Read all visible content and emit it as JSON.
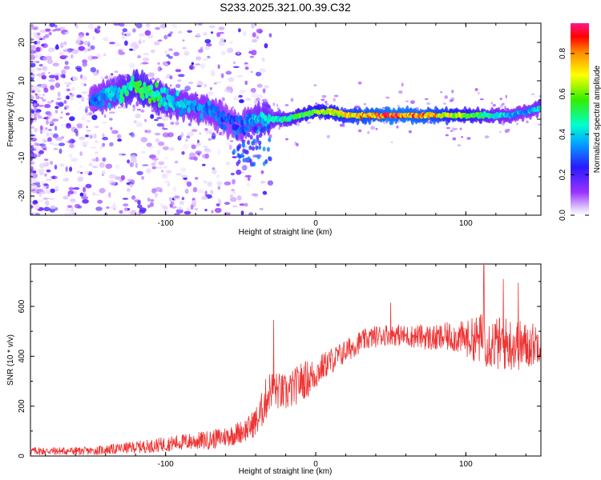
{
  "title": "S233.2025.321.00.39.C32",
  "chart_data": [
    {
      "type": "heatmap",
      "title": "S233.2025.321.00.39.C32",
      "xlabel": "Height of straight line (km)",
      "ylabel": "Frequency (Hz)",
      "xlim": [
        -190,
        150
      ],
      "ylim": [
        -25,
        25
      ],
      "xticks": [
        -100,
        0,
        100
      ],
      "yticks": [
        -20,
        -10,
        0,
        10,
        20
      ],
      "colorbar": {
        "label": "Normalized spectral amplitude",
        "range": [
          0,
          0.95
        ],
        "ticks": [
          0.0,
          0.2,
          0.4,
          0.6,
          0.8
        ],
        "tick_labels": [
          "0.0",
          "0.2",
          "0.4",
          "0.6",
          "0.8"
        ]
      },
      "ridge": {
        "x": [
          -190,
          -170,
          -150,
          -130,
          -120,
          -110,
          -100,
          -90,
          -80,
          -70,
          -60,
          -50,
          -40,
          -30,
          -20,
          -10,
          0,
          10,
          20,
          30,
          40,
          50,
          60,
          70,
          80,
          90,
          100,
          110,
          120,
          130,
          140,
          150
        ],
        "freq": [
          4,
          3,
          5,
          7,
          9,
          7,
          5,
          4,
          3,
          2,
          0,
          -2,
          0,
          0,
          0,
          1,
          2,
          2,
          1,
          1,
          1,
          1,
          1,
          1,
          1,
          1,
          1,
          1,
          1,
          1,
          2,
          3
        ],
        "amplitude": [
          0.25,
          0.25,
          0.3,
          0.45,
          0.55,
          0.55,
          0.45,
          0.4,
          0.35,
          0.35,
          0.3,
          0.3,
          0.4,
          0.45,
          0.5,
          0.6,
          0.65,
          0.7,
          0.75,
          0.8,
          0.85,
          0.9,
          0.88,
          0.85,
          0.8,
          0.72,
          0.65,
          0.55,
          0.45,
          0.4,
          0.35,
          0.45
        ]
      }
    },
    {
      "type": "line",
      "xlabel": "Height of straight line (km)",
      "ylabel": "SNR (10 * v/v)",
      "xlim": [
        -190,
        150
      ],
      "ylim": [
        0,
        770
      ],
      "xticks": [
        -100,
        0,
        100
      ],
      "yticks": [
        0,
        200,
        400,
        600
      ],
      "series": [
        {
          "name": "SNR",
          "color": "#ee3333",
          "x": [
            -190,
            -150,
            -130,
            -110,
            -90,
            -70,
            -55,
            -45,
            -38,
            -33,
            -30,
            -25,
            -20,
            -15,
            -10,
            -5,
            0,
            5,
            10,
            15,
            20,
            30,
            40,
            50,
            60,
            70,
            80,
            90,
            100,
            110,
            120,
            130,
            140,
            150
          ],
          "y": [
            20,
            20,
            30,
            40,
            55,
            65,
            85,
            110,
            150,
            230,
            270,
            260,
            250,
            270,
            300,
            310,
            330,
            360,
            380,
            400,
            420,
            460,
            480,
            490,
            480,
            480,
            470,
            480,
            470,
            470,
            450,
            450,
            440,
            460
          ],
          "noise": [
            15,
            15,
            20,
            25,
            30,
            35,
            40,
            45,
            60,
            80,
            70,
            70,
            70,
            70,
            70,
            70,
            60,
            50,
            50,
            45,
            45,
            40,
            40,
            40,
            40,
            45,
            50,
            55,
            65,
            95,
            100,
            100,
            90,
            70
          ]
        }
      ],
      "peaks": [
        {
          "x": -28,
          "y": 545
        },
        {
          "x": 50,
          "y": 615
        },
        {
          "x": 112,
          "y": 765
        },
        {
          "x": 125,
          "y": 710
        },
        {
          "x": 135,
          "y": 695
        }
      ]
    }
  ]
}
